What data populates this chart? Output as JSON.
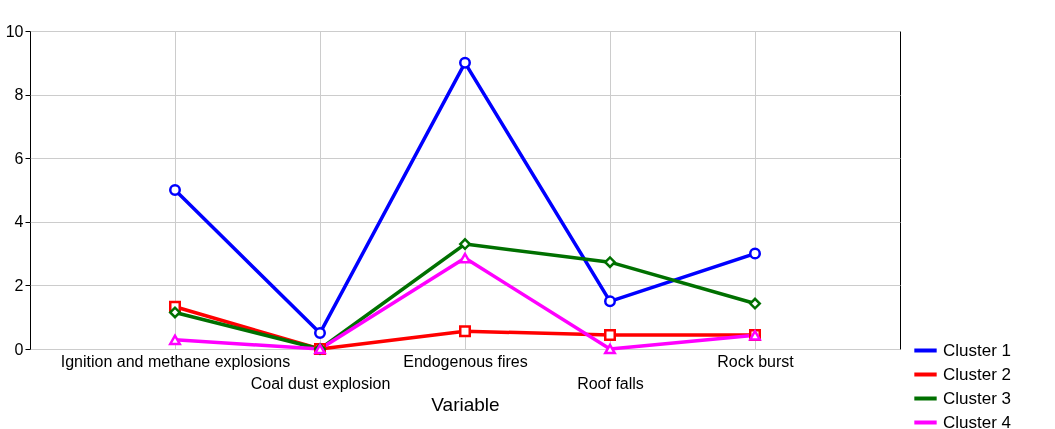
{
  "chart_data": {
    "type": "line",
    "xlabel": "Variable",
    "categories": [
      "Ignition and methane explosions",
      "Coal dust explosion",
      "Endogenous fires",
      "Roof falls",
      "Rock burst"
    ],
    "series": [
      {
        "name": "Cluster 1",
        "color": "#0000ff",
        "marker": "circle",
        "values": [
          5,
          0.5,
          9,
          1.5,
          3
        ]
      },
      {
        "name": "Cluster 2",
        "color": "#ff0000",
        "marker": "square",
        "values": [
          1.33,
          0,
          0.56,
          0.44,
          0.44
        ]
      },
      {
        "name": "Cluster 3",
        "color": "#007000",
        "marker": "diamond",
        "values": [
          1.15,
          0,
          3.3,
          2.73,
          1.43
        ]
      },
      {
        "name": "Cluster 4",
        "color": "#ff00ff",
        "marker": "triangle",
        "values": [
          0.29,
          0,
          2.86,
          0,
          0.43
        ]
      }
    ],
    "ylim": [
      0,
      10
    ],
    "yticks": [
      0,
      2,
      4,
      6,
      8,
      10
    ],
    "grid": true,
    "legend": "bottom right",
    "line_style": "solid"
  }
}
